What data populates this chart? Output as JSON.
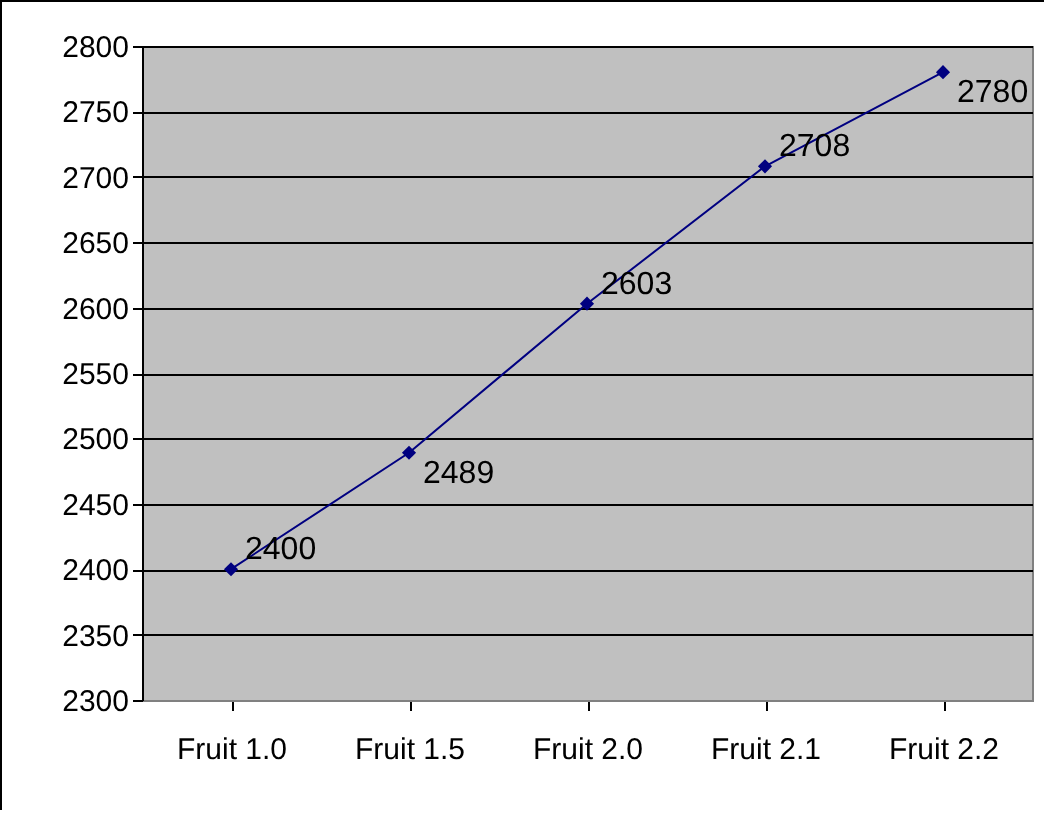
{
  "chart_data": {
    "type": "line",
    "categories": [
      "Fruit 1.0",
      "Fruit 1.5",
      "Fruit 2.0",
      "Fruit 2.1",
      "Fruit 2.2"
    ],
    "series": [
      {
        "color": "#000080",
        "values": [
          2400,
          2489,
          2603,
          2708,
          2780
        ]
      }
    ],
    "ylim": [
      2300,
      2800
    ],
    "yticks": [
      2300,
      2350,
      2400,
      2450,
      2500,
      2550,
      2600,
      2650,
      2700,
      2750,
      2800
    ],
    "grid": "y",
    "marker": "diamond",
    "data_labels": true
  }
}
